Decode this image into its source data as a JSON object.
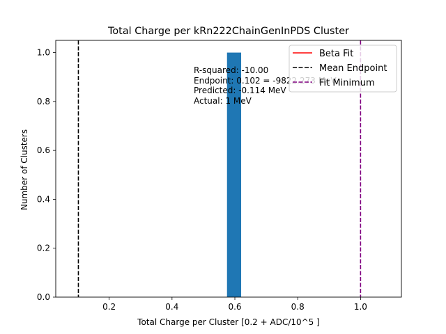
{
  "chart_data": {
    "type": "bar",
    "title": "Total Charge per kRn222ChainGenInPDS Cluster",
    "xlabel": "Total Charge per Cluster [0.2 + ADC/10^5 ]",
    "ylabel": "Number of Clusters",
    "xlim": [
      0.03,
      1.13
    ],
    "ylim": [
      0,
      1.05
    ],
    "xticks": [
      0.2,
      0.4,
      0.6,
      0.8,
      1.0
    ],
    "xtick_labels": [
      "0.2",
      "0.4",
      "0.6",
      "0.8",
      "1.0"
    ],
    "yticks": [
      0.0,
      0.2,
      0.4,
      0.6,
      0.8,
      1.0
    ],
    "ytick_labels": [
      "0.0",
      "0.2",
      "0.4",
      "0.6",
      "0.8",
      "1.0"
    ],
    "bars": [
      {
        "x0": 0.575,
        "x1": 0.62,
        "value": 1.0
      }
    ],
    "bar_color": "#1f77b4",
    "vlines": [
      {
        "name": "Mean Endpoint",
        "x": 0.102,
        "color": "#000000",
        "style": "dashed"
      },
      {
        "name": "Fit Minimum",
        "x": 1.0,
        "color": "#800080",
        "style": "dashed"
      }
    ],
    "fit_line": {
      "name": "Beta Fit",
      "color": "#ff0000",
      "style": "solid"
    },
    "legend": {
      "placement": "top-right",
      "entries": [
        {
          "label": "Beta Fit",
          "color": "#ff0000",
          "style": "solid"
        },
        {
          "label": "Mean Endpoint",
          "color": "#000000",
          "style": "dashed"
        },
        {
          "label": "Fit Minimum",
          "color": "#800080",
          "style": "dashed"
        }
      ]
    },
    "annotation": {
      "lines": [
        "R-squared: -10.00",
        "Endpoint: 0.102 = -9822.273 MeV",
        "Predicted: -0.114 MeV",
        "Actual: 1 MeV"
      ]
    },
    "grid": false
  }
}
